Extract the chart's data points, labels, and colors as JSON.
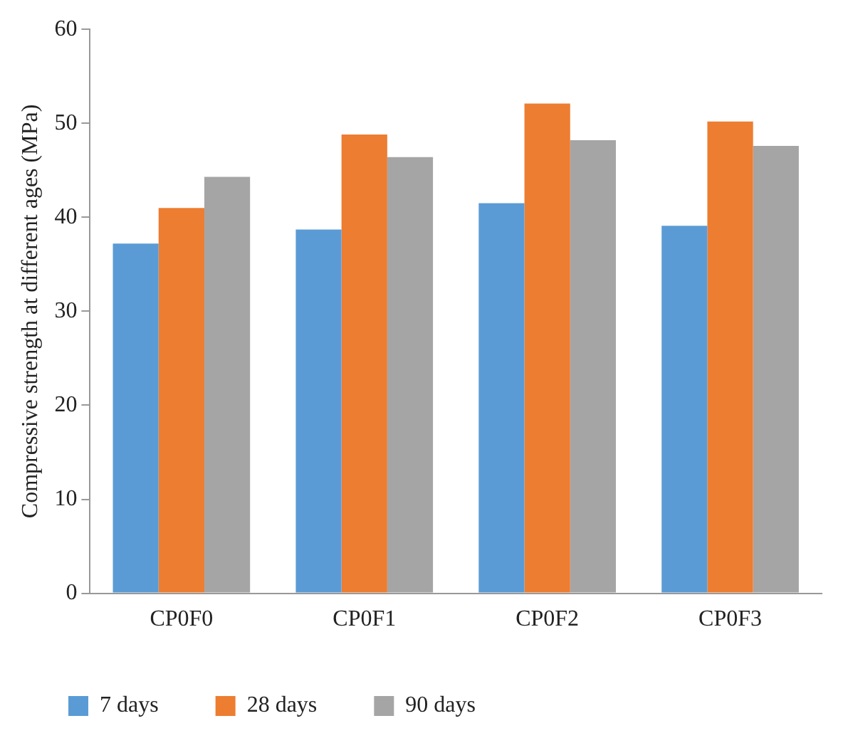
{
  "chart_data": {
    "type": "bar",
    "ylabel": "Compressive strength at different ages (MPa)",
    "categories": [
      "CP0F0",
      "CP0F1",
      "CP0F2",
      "CP0F3"
    ],
    "series": [
      {
        "name": "7 days",
        "color": "#5b9bd5",
        "values": [
          37.2,
          38.7,
          41.5,
          39.1
        ]
      },
      {
        "name": "28 days",
        "color": "#ed7d31",
        "values": [
          41.0,
          48.8,
          52.1,
          50.2
        ]
      },
      {
        "name": "90 days",
        "color": "#a5a5a5",
        "values": [
          44.3,
          46.4,
          48.2,
          47.6
        ]
      }
    ],
    "ylim": [
      0,
      60
    ],
    "yticks": [
      0,
      10,
      20,
      30,
      40,
      50,
      60
    ],
    "grid": false,
    "legend": "bottom"
  }
}
